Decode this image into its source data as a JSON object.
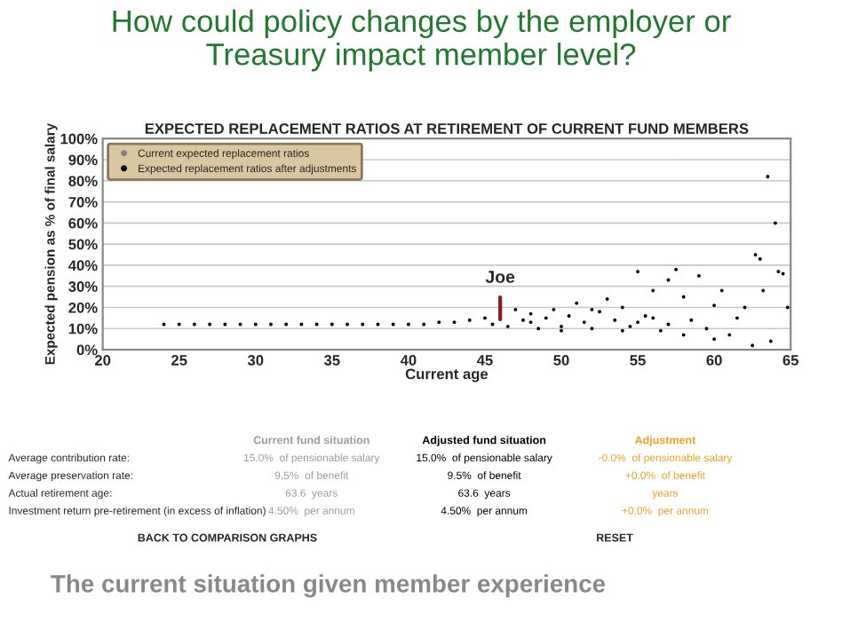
{
  "chart_data": {
    "type": "scatter",
    "title": "How could policy changes by the employer or\nTreasury impact member level?",
    "subtitle": "EXPECTED REPLACEMENT RATIOS AT RETIREMENT OF CURRENT FUND MEMBERS",
    "xlabel": "Current age",
    "ylabel": "Expected pension as % of final salary",
    "x": [
      24,
      25,
      26,
      27,
      28,
      29,
      30,
      31,
      32,
      33,
      34,
      35,
      36,
      37,
      38,
      39,
      40,
      41,
      42,
      43,
      44,
      45,
      45.5,
      46,
      46.5,
      47,
      47.5,
      48,
      48.5,
      49,
      49.5,
      50,
      50.5,
      51,
      51.5,
      52,
      52.5,
      53,
      53.5,
      54,
      54.5,
      55,
      55.5,
      56,
      56.5,
      57,
      57.5,
      58,
      58.5,
      59,
      59.5,
      60,
      60.5,
      61,
      61.5,
      62,
      62.5,
      62.7,
      63,
      63.2,
      63.5,
      63.7,
      64,
      64.2,
      64.5,
      64.8,
      58,
      56,
      54,
      52,
      50,
      48,
      60,
      57,
      55
    ],
    "series": [
      {
        "name": "Current expected replacement ratios",
        "color": "#808080",
        "values": [
          null,
          null,
          null,
          null,
          null,
          null,
          null,
          null,
          null,
          null,
          null,
          null,
          null,
          null,
          null,
          null,
          null,
          null,
          null,
          null,
          null,
          null,
          null,
          null,
          null,
          null,
          null,
          null,
          null,
          null,
          null,
          null,
          null,
          null,
          null,
          null,
          null,
          null,
          null,
          null,
          null,
          null,
          null,
          null,
          null,
          null,
          null,
          null,
          null,
          null,
          null,
          null,
          null,
          null,
          null,
          null,
          null,
          null,
          null,
          null,
          null,
          null,
          null,
          null,
          null,
          null,
          null,
          null,
          null,
          null,
          null,
          null,
          null,
          null,
          null
        ]
      },
      {
        "name": "Expected replacement ratios after adjustments",
        "color": "#000000",
        "values": [
          12,
          12,
          12,
          12,
          12,
          12,
          12,
          12,
          12,
          12,
          12,
          12,
          12,
          12,
          12,
          12,
          12,
          12,
          13,
          13,
          14,
          15,
          12,
          null,
          11,
          19,
          14,
          17,
          10,
          15,
          19,
          11,
          16,
          22,
          13,
          10,
          18,
          24,
          14,
          20,
          11,
          37,
          16,
          28,
          9,
          33,
          38,
          25,
          14,
          35,
          10,
          21,
          28,
          7,
          15,
          20,
          2,
          45,
          43,
          28,
          82,
          4,
          60,
          37,
          36,
          20,
          7,
          15,
          9,
          19,
          9,
          13,
          5,
          12,
          13
        ]
      }
    ],
    "xlim": [
      20,
      65
    ],
    "xticks": [
      20,
      25,
      30,
      35,
      40,
      45,
      50,
      55,
      60,
      65
    ],
    "ylim": [
      0,
      100
    ],
    "yticks": [
      {
        "value": 0,
        "label": "0%"
      },
      {
        "value": 10,
        "label": "10%"
      },
      {
        "value": 20,
        "label": "20%"
      },
      {
        "value": 30,
        "label": "30%"
      },
      {
        "value": 40,
        "label": "40%"
      },
      {
        "value": 50,
        "label": "50%"
      },
      {
        "value": 60,
        "label": "60%"
      },
      {
        "value": 70,
        "label": "70%"
      },
      {
        "value": 80,
        "label": "80%"
      },
      {
        "value": 90,
        "label": "90%"
      },
      {
        "value": 100,
        "label": "100%"
      }
    ],
    "grid": "y",
    "legend": "top left",
    "marker": "circle",
    "annotations": [
      {
        "text": "Joe",
        "x": 46,
        "y": 12
      },
      "Current fund situation",
      "Adjusted fund situation",
      "Adjustment",
      "Average contribution rate:",
      "15.0%  of pensionable salary",
      "15.0%  of pensionable salary",
      "-0.0%  of pensionable salary",
      "Average preservation rate:",
      "9.5%  of benefit",
      "9.5%  of benefit",
      "+0.0%  of benefit",
      "Actual retirement age:",
      "63.6  years",
      "63.6  years",
      "years",
      "Investment return pre-retirement (in excess of inflation)",
      "4.50%  per annum",
      "4.50%  per annum",
      "+0.0%  per annum",
      "BACK TO COMPARISON GRAPHS",
      "RESET",
      "The current situation given member experience"
    ]
  }
}
